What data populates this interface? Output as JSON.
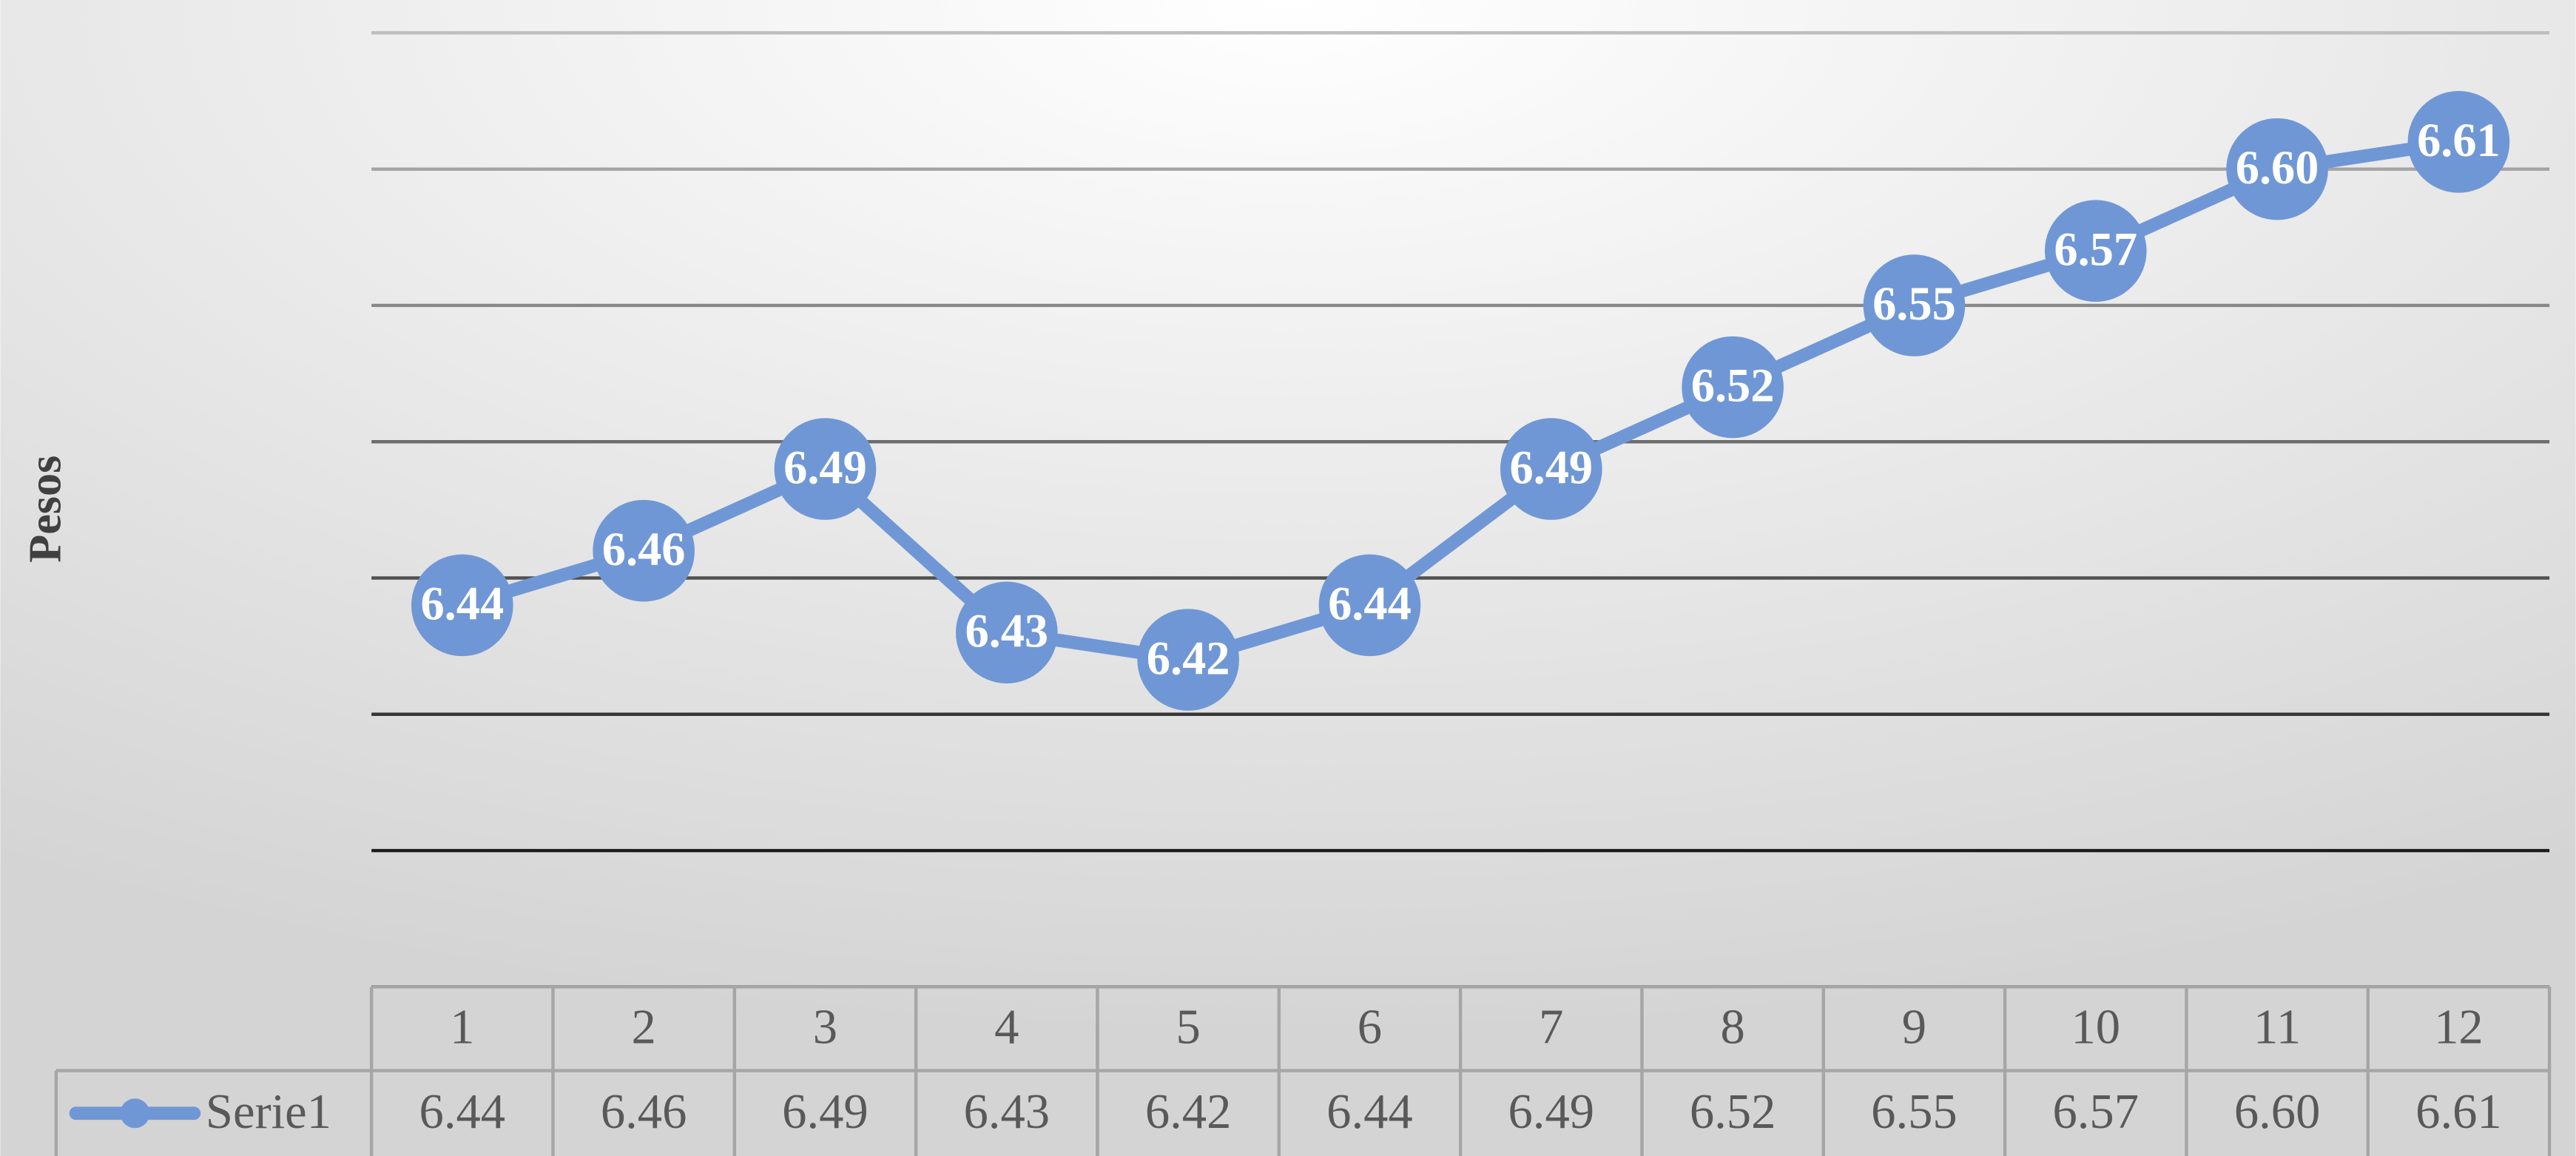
{
  "chart_data": {
    "type": "line",
    "y_label": "Pesos",
    "categories": [
      "1",
      "2",
      "3",
      "4",
      "5",
      "6",
      "7",
      "8",
      "9",
      "10",
      "11",
      "12"
    ],
    "series": [
      {
        "name": "Serie1",
        "color": "#7097d5",
        "values": [
          6.44,
          6.46,
          6.49,
          6.43,
          6.42,
          6.44,
          6.49,
          6.52,
          6.55,
          6.57,
          6.6,
          6.61
        ],
        "value_labels": [
          "6.44",
          "6.46",
          "6.49",
          "6.43",
          "6.42",
          "6.44",
          "6.49",
          "6.52",
          "6.55",
          "6.57",
          "6.60",
          "6.61"
        ]
      }
    ],
    "ylim": [
      6.3,
      6.65
    ],
    "yticks": [
      6.3,
      6.35,
      6.4,
      6.45,
      6.5,
      6.55,
      6.6,
      6.65
    ],
    "grid": true,
    "data_table": true
  }
}
